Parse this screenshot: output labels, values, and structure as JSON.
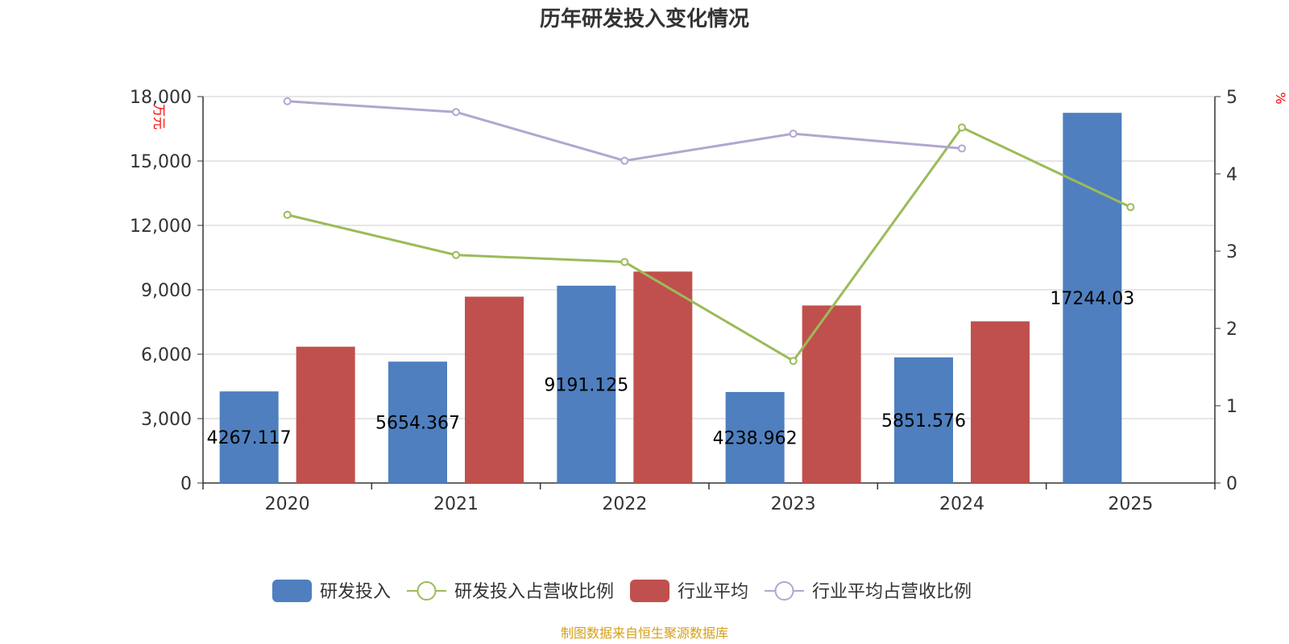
{
  "chart_data": {
    "type": "bar",
    "title": "历年研发投入变化情况",
    "categories": [
      "2020",
      "2021",
      "2022",
      "2023",
      "2024",
      "2025"
    ],
    "y_left": {
      "unit": "万元",
      "min": 0,
      "max": 18000,
      "ticks": [
        "0",
        "3,000",
        "6,000",
        "9,000",
        "12,000",
        "15,000",
        "18,000"
      ]
    },
    "y_right": {
      "unit": "%",
      "min": 0,
      "max": 5,
      "ticks": [
        "0",
        "1",
        "2",
        "3",
        "4",
        "5"
      ]
    },
    "series": [
      {
        "name": "研发投入",
        "type": "bar",
        "axis": "left",
        "color": "#4f7fbe",
        "values": [
          4267.117,
          5654.367,
          9191.125,
          4238.962,
          5851.576,
          17244.03
        ],
        "labels": [
          "4267.117",
          "5654.367",
          "9191.125",
          "4238.962",
          "5851.576",
          "17244.03"
        ]
      },
      {
        "name": "研发投入占营收比例",
        "type": "line",
        "axis": "right",
        "color": "#9bbb59",
        "values": [
          3.47,
          2.95,
          2.86,
          1.58,
          4.6,
          3.57
        ]
      },
      {
        "name": "行业平均",
        "type": "bar",
        "axis": "left",
        "color": "#c0504d",
        "values": [
          6350,
          8680,
          9850,
          8270,
          7530,
          null
        ]
      },
      {
        "name": "行业平均占营收比例",
        "type": "line",
        "axis": "right",
        "color": "#b3a6cf",
        "values": [
          4.94,
          4.8,
          4.17,
          4.52,
          4.33,
          null
        ]
      }
    ],
    "grid": true,
    "legend_position": "bottom-center"
  },
  "source": {
    "text": "制图数据来自恒生聚源数据库",
    "color": "#d4a017"
  }
}
